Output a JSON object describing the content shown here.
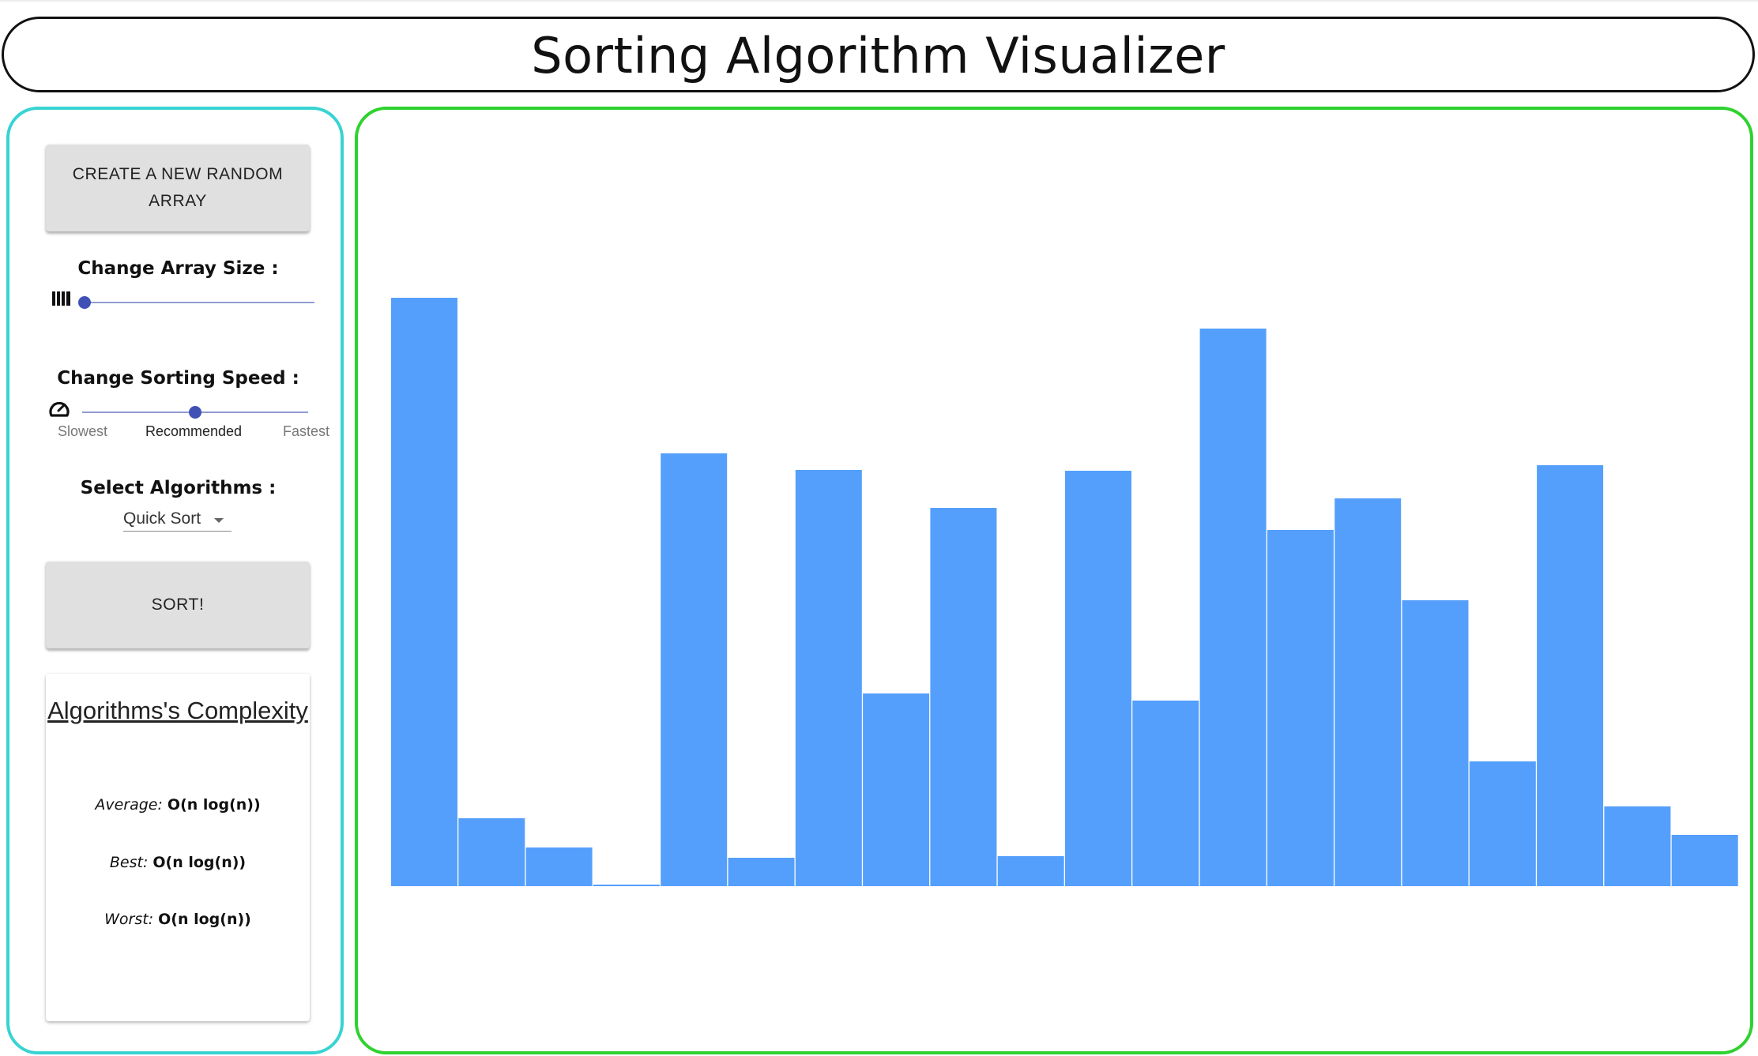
{
  "header": {
    "title": "Sorting Algorithm Visualizer"
  },
  "sidebar": {
    "new_array_label": "CREATE A NEW RANDOM ARRAY",
    "size_label": "Change Array Size :",
    "size_slider": {
      "value_fraction": 0.0,
      "icon": "bars-icon"
    },
    "speed_label": "Change Sorting Speed :",
    "speed_slider": {
      "value_fraction": 0.5,
      "icon": "speedometer-icon"
    },
    "speed_marks": [
      "Slowest",
      "Recommended",
      "Fastest"
    ],
    "algorithm_label": "Select Algorithms :",
    "algorithm_selected": "Quick Sort",
    "sort_label": "SORT!",
    "complexity": {
      "title": "Algorithms's Complexity",
      "rows": [
        {
          "key": "Average",
          "value": "O(n log(n))"
        },
        {
          "key": "Best",
          "value": "O(n log(n))"
        },
        {
          "key": "Worst",
          "value": "O(n log(n))"
        }
      ]
    }
  },
  "colors": {
    "bar": "#559ffc",
    "sidebar_border": "#38d3d3",
    "main_border": "#2ed22e",
    "slider": "#3f51b5"
  },
  "chart_data": {
    "type": "bar",
    "values": [
      745,
      86,
      49,
      2,
      548,
      36,
      527,
      244,
      479,
      38,
      526,
      235,
      706,
      451,
      491,
      362,
      158,
      533,
      101,
      65
    ],
    "ylim": [
      0,
      745
    ]
  }
}
